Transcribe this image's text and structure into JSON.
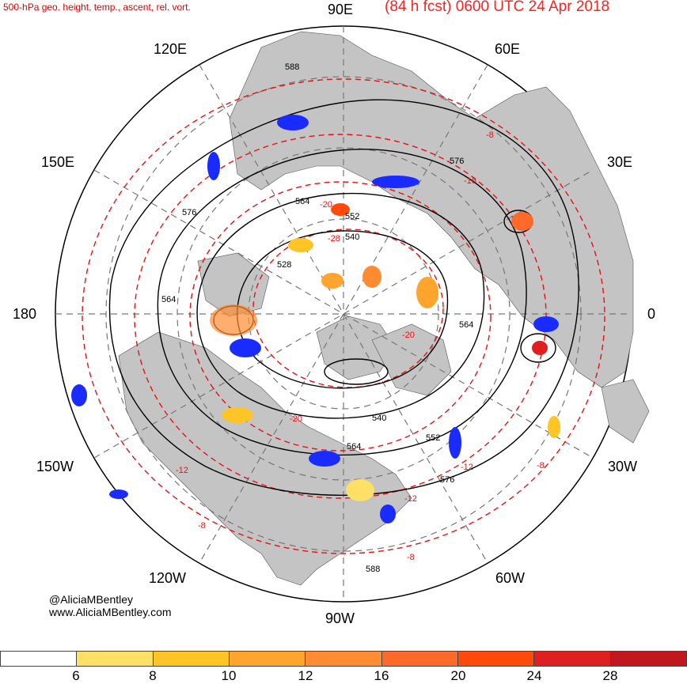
{
  "header": {
    "left_title": "500-hPa geo. height, temp., ascent, rel. vort.",
    "right_title": "(84 h fcst) 0600 UTC 24 Apr 2018"
  },
  "longitude_labels": {
    "e90": "90E",
    "e120": "120E",
    "e60": "60E",
    "e150": "150E",
    "e30": "30E",
    "w180": "180",
    "e0": "0",
    "w150": "150W",
    "w30": "30W",
    "w120": "120W",
    "w60": "60W",
    "w90": "90W"
  },
  "height_labels": [
    "588",
    "576",
    "564",
    "552",
    "540",
    "528",
    "564",
    "540",
    "552",
    "564",
    "576",
    "588",
    "576",
    "564"
  ],
  "temperature_labels": [
    "-8",
    "-16",
    "-20",
    "-28",
    "-20",
    "-12",
    "-8",
    "-12",
    "-8",
    "-8",
    "-20",
    "-12"
  ],
  "credit": {
    "twitter": "@AliciaMBentley",
    "website": "www.AliciaMBentley.com"
  },
  "colorbar": {
    "colors": [
      "#ffffff",
      "#ffe066",
      "#ffc526",
      "#ffa52e",
      "#ff8c32",
      "#ff6a2b",
      "#ff4a0c",
      "#e02020",
      "#c0181c"
    ],
    "ticks": [
      "6",
      "8",
      "10",
      "12",
      "16",
      "20",
      "24",
      "28"
    ]
  }
}
